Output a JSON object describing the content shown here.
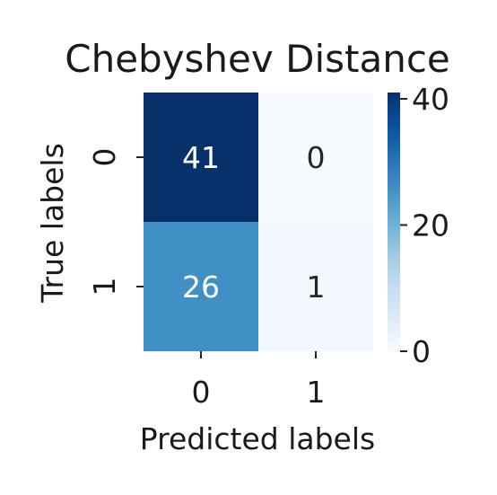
{
  "chart_data": {
    "type": "heatmap",
    "title": "Chebyshev Distance",
    "xlabel": "Predicted labels",
    "ylabel": "True labels",
    "x_categories": [
      "0",
      "1"
    ],
    "y_categories": [
      "0",
      "1"
    ],
    "values": [
      [
        41,
        0
      ],
      [
        26,
        1
      ]
    ],
    "colormap": "Blues",
    "colorbar": {
      "min": 0,
      "max": 41,
      "ticks": [
        0,
        20,
        40
      ]
    }
  },
  "colors": {
    "low": "#f7fbff",
    "mid": "#6baed6",
    "high": "#08306b"
  }
}
